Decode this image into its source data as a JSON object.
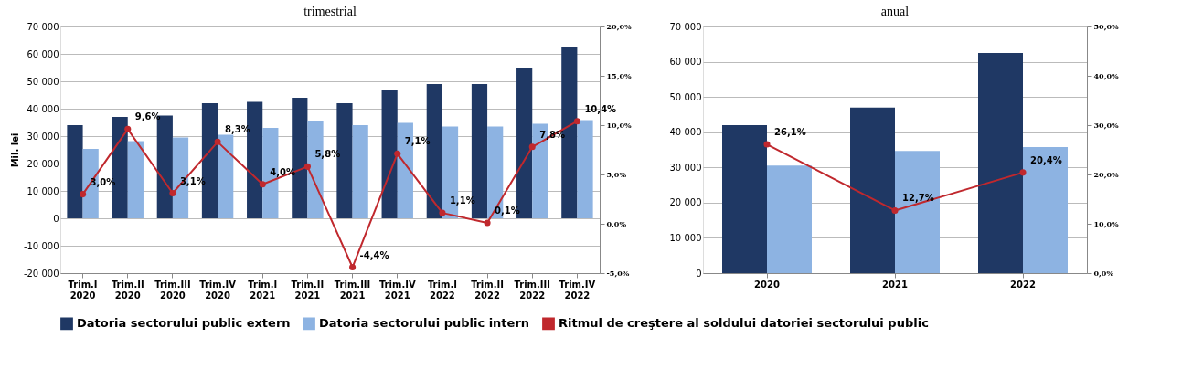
{
  "chart_data": [
    {
      "type": "bar",
      "title": "trimestrial",
      "ylabel": "Mil. lei",
      "legend": "bottom",
      "grid": "y",
      "categories": [
        "Trim.I 2020",
        "Trim.II 2020",
        "Trim.III 2020",
        "Trim.IV 2020",
        "Trim.I 2021",
        "Trim.II 2021",
        "Trim.III 2021",
        "Trim.IV 2021",
        "Trim.I 2022",
        "Trim.II 2022",
        "Trim.III 2022",
        "Trim.IV 2022"
      ],
      "ylim": [
        -20000,
        70000
      ],
      "yticks": [
        {
          "value": -20000,
          "label": "-20 000"
        },
        {
          "value": -10000,
          "label": "-10 000"
        },
        {
          "value": 0,
          "label": "0"
        },
        {
          "value": 10000,
          "label": "10 000"
        },
        {
          "value": 20000,
          "label": "20 000"
        },
        {
          "value": 30000,
          "label": "30 000"
        },
        {
          "value": 40000,
          "label": "40 000"
        },
        {
          "value": 50000,
          "label": "50 000"
        },
        {
          "value": 60000,
          "label": "60 000"
        },
        {
          "value": 70000,
          "label": "70 000"
        }
      ],
      "y2lim": [
        -5,
        20
      ],
      "y2ticks": [
        {
          "value": -5,
          "label": "-5,0%"
        },
        {
          "value": 0,
          "label": "0,0%"
        },
        {
          "value": 5,
          "label": "5,0%"
        },
        {
          "value": 10,
          "label": "10,0%"
        },
        {
          "value": 15,
          "label": "15,0%"
        },
        {
          "value": 20,
          "label": "20,0%"
        }
      ],
      "series": [
        {
          "name": "Datoria sectorului public extern",
          "color": "#1f3864",
          "values": [
            34000,
            37000,
            37500,
            42000,
            42500,
            44000,
            42000,
            47000,
            49000,
            49000,
            55000,
            62500
          ]
        },
        {
          "name": "Datoria sectorului public intern",
          "color": "#8db3e2",
          "values": [
            25300,
            28200,
            29500,
            30500,
            33000,
            35500,
            34000,
            34800,
            33500,
            33500,
            34500,
            35800
          ]
        },
        {
          "name": "Ritmul de creştere al soldului  datoriei sectorului public",
          "type": "line",
          "axis": "y2",
          "marker": "circle",
          "color": "#c0282d",
          "values": [
            3.0,
            9.6,
            3.1,
            8.3,
            4.0,
            5.8,
            -4.4,
            7.1,
            1.1,
            0.1,
            7.8,
            10.4
          ],
          "value_labels": [
            "3,0%",
            "9,6%",
            "3,1%",
            "8,3%",
            "4,0%",
            "5,8%",
            "-4,4%",
            "7,1%",
            "1,1%",
            "0,1%",
            "7,8%",
            "10,4%"
          ]
        }
      ]
    },
    {
      "type": "bar",
      "title": "anual",
      "legend": "bottom",
      "grid": "y",
      "categories": [
        "2020",
        "2021",
        "2022"
      ],
      "ylim": [
        0,
        70000
      ],
      "yticks": [
        {
          "value": 0,
          "label": "0"
        },
        {
          "value": 10000,
          "label": "10 000"
        },
        {
          "value": 20000,
          "label": "20 000"
        },
        {
          "value": 30000,
          "label": "30 000"
        },
        {
          "value": 40000,
          "label": "40 000"
        },
        {
          "value": 50000,
          "label": "50 000"
        },
        {
          "value": 60000,
          "label": "60 000"
        },
        {
          "value": 70000,
          "label": "70 000"
        }
      ],
      "y2lim": [
        0,
        50
      ],
      "y2ticks": [
        {
          "value": 0,
          "label": "0,0%"
        },
        {
          "value": 10,
          "label": "10,0%"
        },
        {
          "value": 20,
          "label": "20,0%"
        },
        {
          "value": 30,
          "label": "30,0%"
        },
        {
          "value": 40,
          "label": "40,0%"
        },
        {
          "value": 50,
          "label": "50,0%"
        }
      ],
      "series": [
        {
          "name": "Datoria sectorului public extern",
          "color": "#1f3864",
          "values": [
            42000,
            47000,
            62500
          ]
        },
        {
          "name": "Datoria sectorului public intern",
          "color": "#8db3e2",
          "values": [
            30500,
            34700,
            35800
          ]
        },
        {
          "name": "Ritmul de creştere al soldului  datoriei sectorului public",
          "type": "line",
          "axis": "y2",
          "marker": "circle",
          "color": "#c0282d",
          "values": [
            26.1,
            12.7,
            20.4
          ],
          "value_labels": [
            "26,1%",
            "12,7%",
            "20,4%"
          ]
        }
      ]
    }
  ]
}
